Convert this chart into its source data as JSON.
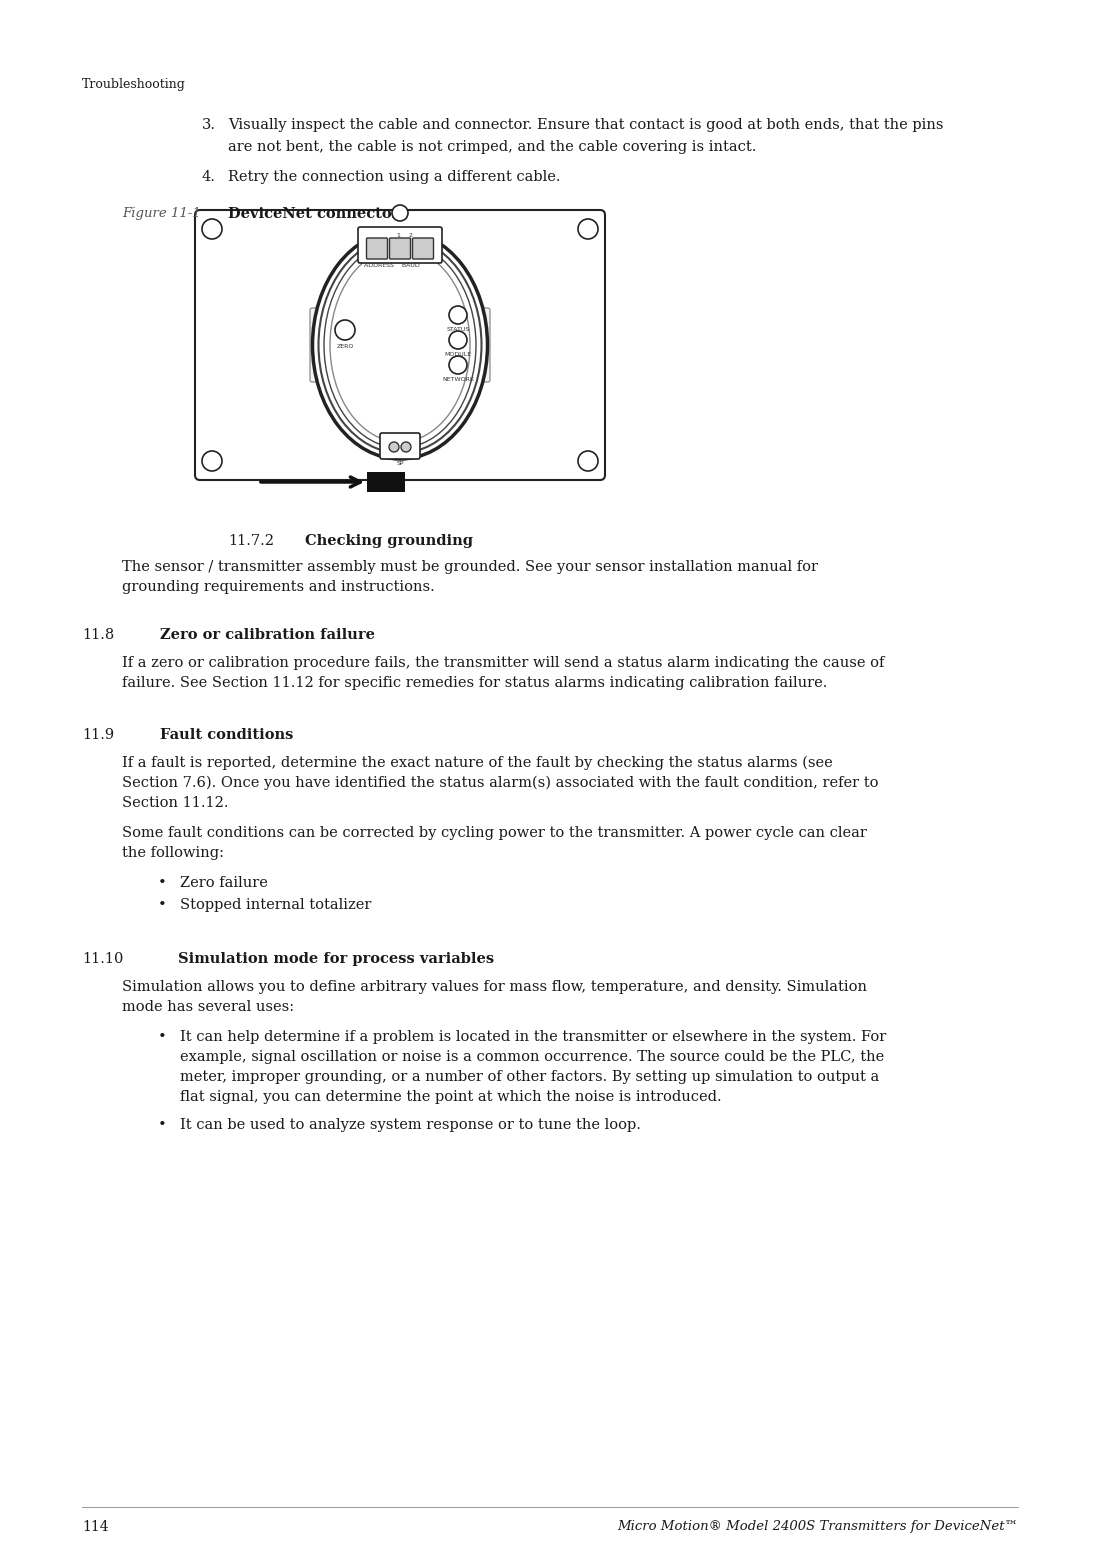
{
  "bg_color": "#ffffff",
  "text_color": "#1a1a1a",
  "gray_text": "#555555",
  "page_number": "114",
  "footer_text": "Micro Motion® Model 2400S Transmitters for DeviceNet™",
  "header_text": "Troubleshooting",
  "figure_label": "Figure 11-1",
  "figure_title": "DeviceNet connector",
  "item_3_line1": "Visually inspect the cable and connector. Ensure that contact is good at both ends, that the pins",
  "item_3_line2": "are not bent, the cable is not crimped, and the cable covering is intact.",
  "item_4": "Retry the connection using a different cable.",
  "sec772_num": "11.7.2",
  "sec772_title": "Checking grounding",
  "sec772_body1": "The sensor / transmitter assembly must be grounded. See your sensor installation manual for",
  "sec772_body2": "grounding requirements and instructions.",
  "sec118_num": "11.8",
  "sec118_title": "Zero or calibration failure",
  "sec118_body1": "If a zero or calibration procedure fails, the transmitter will send a status alarm indicating the cause of",
  "sec118_body2": "failure. See Section 11.12 for specific remedies for status alarms indicating calibration failure.",
  "sec119_num": "11.9",
  "sec119_title": "Fault conditions",
  "sec119_body1_l1": "If a fault is reported, determine the exact nature of the fault by checking the status alarms (see",
  "sec119_body1_l2": "Section 7.6). Once you have identified the status alarm(s) associated with the fault condition, refer to",
  "sec119_body1_l3": "Section 11.12.",
  "sec119_body2_l1": "Some fault conditions can be corrected by cycling power to the transmitter. A power cycle can clear",
  "sec119_body2_l2": "the following:",
  "sec119_bullet1": "Zero failure",
  "sec119_bullet2": "Stopped internal totalizer",
  "sec1110_num": "11.10",
  "sec1110_title": "Simulation mode for process variables",
  "sec1110_body1_l1": "Simulation allows you to define arbitrary values for mass flow, temperature, and density. Simulation",
  "sec1110_body1_l2": "mode has several uses:",
  "sec1110_bullet1_l1": "It can help determine if a problem is located in the transmitter or elsewhere in the system. For",
  "sec1110_bullet1_l2": "example, signal oscillation or noise is a common occurrence. The source could be the PLC, the",
  "sec1110_bullet1_l3": "meter, improper grounding, or a number of other factors. By setting up simulation to output a",
  "sec1110_bullet1_l4": "flat signal, you can determine the point at which the noise is introduced.",
  "sec1110_bullet2": "It can be used to analyze system response or to tune the loop."
}
